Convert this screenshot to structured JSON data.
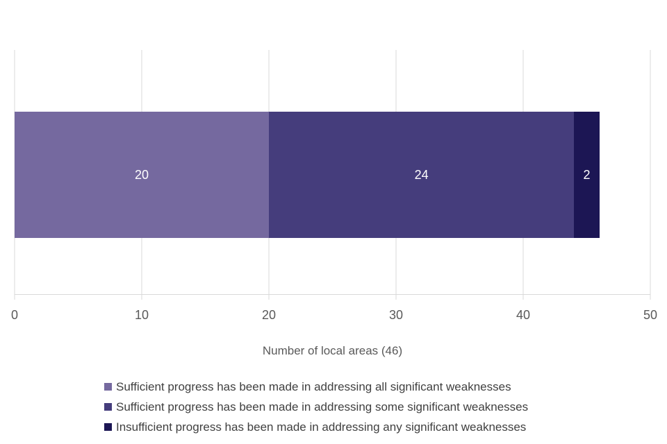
{
  "page": {
    "background": "#FFFFFF"
  },
  "colors": {
    "gridline": "#D9D9D9",
    "axis_text": "#595959",
    "legend_text": "#404040",
    "bar_value_label": "#FFFFFF"
  },
  "chart_data": {
    "type": "bar",
    "orientation": "horizontal",
    "stacked": true,
    "title": "",
    "xlabel": "Number of local areas (46)",
    "ylabel": "",
    "xlim": [
      0,
      50
    ],
    "x_ticks": [
      0,
      10,
      20,
      30,
      40,
      50
    ],
    "total": 46,
    "grid": true,
    "legend_position": "bottom",
    "series": [
      {
        "name": "Sufficient progress has been made in addressing all significant weaknesses",
        "value": 20,
        "color": "#75699F"
      },
      {
        "name": "Sufficient progress has been made in addressing some significant weaknesses",
        "value": 24,
        "color": "#453D7C"
      },
      {
        "name": "Insufficient progress has been made in addressing any significant weaknesses",
        "value": 2,
        "color": "#1C1654"
      }
    ]
  }
}
